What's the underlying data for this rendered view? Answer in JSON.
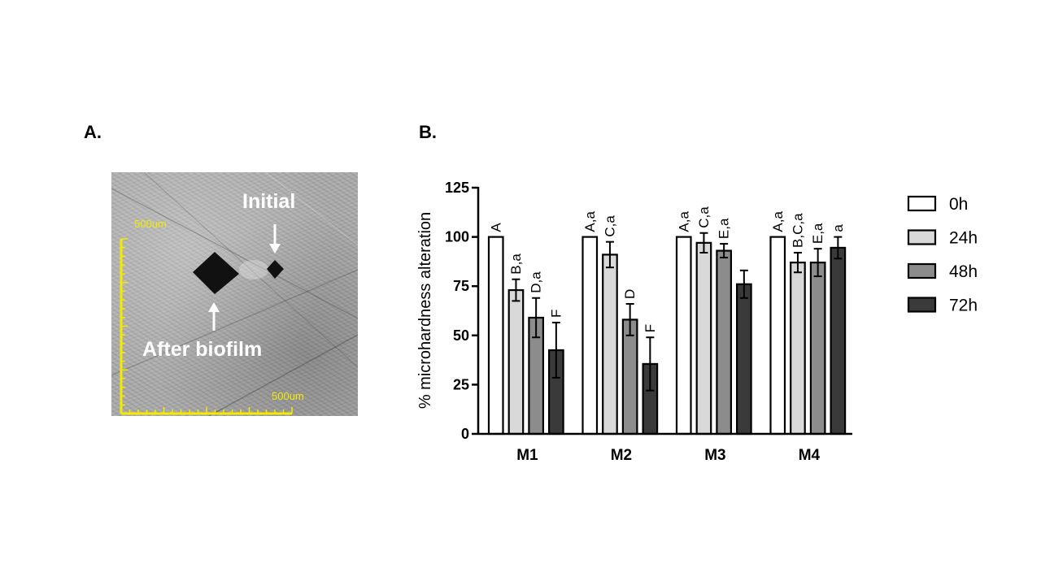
{
  "panels": {
    "a_label": "A.",
    "b_label": "B."
  },
  "micrograph": {
    "initial_label": "Initial",
    "after_label": "After biofilm",
    "scale_left": "500um",
    "scale_bottom": "500um",
    "colors": {
      "scale": "#f4ea00",
      "indent": "#111111",
      "annotation": "#ffffff"
    }
  },
  "chart_data": {
    "type": "bar",
    "title": "",
    "xlabel": "",
    "ylabel": "%  microhardness alteration",
    "ylim": [
      0,
      125
    ],
    "yticks": [
      0,
      25,
      50,
      75,
      100,
      125
    ],
    "categories": [
      "M1",
      "M2",
      "M3",
      "M4"
    ],
    "series": [
      {
        "name": "0h",
        "color": "#ffffff",
        "values": [
          100,
          100,
          100,
          100
        ],
        "errors": [
          0,
          0,
          0,
          0
        ],
        "letters": [
          "A",
          "A,a",
          "A,a",
          "A,a"
        ]
      },
      {
        "name": "24h",
        "color": "#d9d9d9",
        "values": [
          73,
          91,
          97,
          87
        ],
        "errors": [
          5.5,
          6.5,
          5,
          5
        ],
        "letters": [
          "B,a",
          "C,a",
          "C,a",
          "B,C,a"
        ]
      },
      {
        "name": "48h",
        "color": "#8c8c8c",
        "values": [
          59,
          58,
          93,
          87
        ],
        "errors": [
          10,
          8,
          3.5,
          7
        ],
        "letters": [
          "D,a",
          "D",
          "E,a",
          "E,a"
        ]
      },
      {
        "name": "72h",
        "color": "#3a3a3a",
        "values": [
          42.5,
          35.5,
          76,
          94.5
        ],
        "errors": [
          14,
          13.5,
          7,
          5.5
        ],
        "letters": [
          "F",
          "F",
          "",
          "a"
        ]
      }
    ],
    "legend": "right",
    "grid": false
  }
}
